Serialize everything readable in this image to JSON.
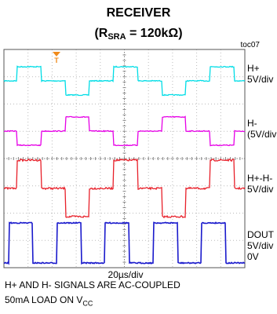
{
  "title": {
    "line1": "RECEIVER",
    "line2_prefix": "(R",
    "line2_sub": "SRA",
    "line2_suffix": " = 120kΩ)"
  },
  "plot_id": "toc07",
  "time_scale": "20µs/div",
  "notes": {
    "line1": "H+ AND H- SIGNALS ARE AC-COUPLED",
    "line2_prefix": "50mA LOAD ON V",
    "line2_sub": "CC"
  },
  "chart_data": {
    "type": "line",
    "title": "RECEIVER (RSRA = 120kΩ)",
    "xlabel": "20µs/div",
    "x_divisions": 10,
    "y_divisions": 8,
    "grid": true,
    "trigger_marker": "T",
    "series": [
      {
        "name": "H+",
        "scale_lines": [
          "H+",
          "5V/div"
        ],
        "color": "#00dde6",
        "levels": [
          -0.05,
          0.0,
          0.5,
          0.0,
          -0.5
        ],
        "pattern": "3-level staircase, period 4 div"
      },
      {
        "name": "H-",
        "scale_lines": [
          "H-",
          "(5V/div"
        ],
        "color": "#e600e6",
        "levels": [
          0.05,
          0.0,
          -0.5,
          0.0,
          0.5
        ],
        "pattern": "inverted 3-level staircase, period 4 div"
      },
      {
        "name": "H+-H-",
        "scale_lines": [
          "H+-H-",
          "5V/div"
        ],
        "color": "#e8202a",
        "levels": [
          0.0,
          1.0,
          0.0,
          -1.0
        ],
        "pattern": "3-level differential, period 4 div"
      },
      {
        "name": "DOUT",
        "scale_lines": [
          "DOUT",
          "5V/div",
          "0V"
        ],
        "color": "#1a1acc",
        "levels": [
          0,
          1
        ],
        "pattern": "logic pulses, period 2 div"
      }
    ]
  }
}
